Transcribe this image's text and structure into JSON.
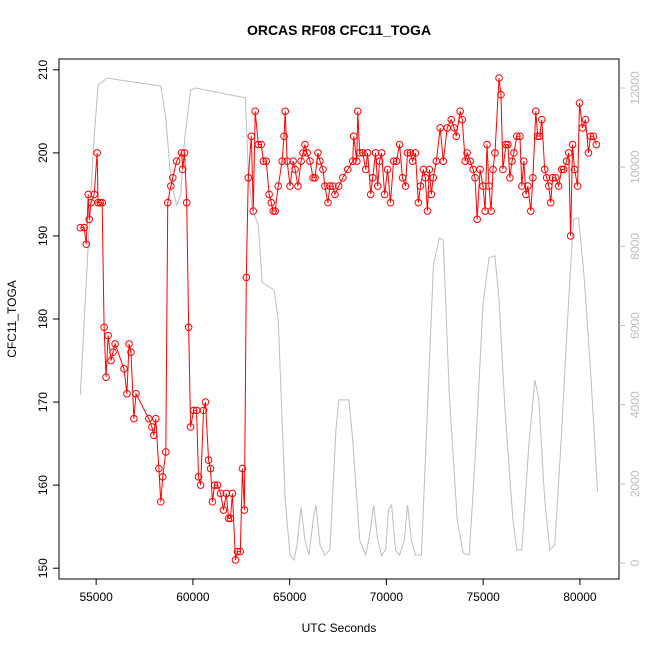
{
  "chart_data": {
    "type": "line",
    "title": "ORCAS RF08 CFC11_TOGA",
    "x_label": "UTC Seconds",
    "y_label": "CFC11_TOGA",
    "xlim": [
      53080,
      82020
    ],
    "xticks": [
      55000,
      60000,
      65000,
      70000,
      75000,
      80000
    ],
    "ylim": [
      148.7,
      211.3
    ],
    "yticks": [
      150,
      160,
      170,
      180,
      190,
      200,
      210
    ],
    "y2lim": [
      -404,
      12733
    ],
    "y2ticks": [
      0,
      2000,
      4000,
      6000,
      8000,
      10000,
      12000
    ],
    "grid": false,
    "series": [
      {
        "color": "#ff0000",
        "marker": "circle",
        "x": [
          54180,
          54380,
          54490,
          54590,
          54640,
          54740,
          54900,
          55050,
          55100,
          55210,
          55310,
          55410,
          55510,
          55620,
          55770,
          55870,
          55980,
          56440,
          56590,
          56700,
          56800,
          56950,
          57060,
          57720,
          57880,
          57980,
          58080,
          58240,
          58340,
          58440,
          58600,
          58700,
          58860,
          58960,
          59160,
          59420,
          59470,
          59570,
          59680,
          59780,
          59880,
          60040,
          60190,
          60290,
          60400,
          60550,
          60650,
          60810,
          60910,
          61010,
          61120,
          61270,
          61430,
          61580,
          61730,
          61840,
          61940,
          62040,
          62200,
          62300,
          62450,
          62560,
          62660,
          62760,
          62860,
          63020,
          63120,
          63220,
          63380,
          63530,
          63640,
          63790,
          63940,
          64050,
          64150,
          64250,
          64410,
          64610,
          64710,
          64770,
          64870,
          65020,
          65180,
          65280,
          65430,
          65590,
          65690,
          65790,
          65900,
          66050,
          66210,
          66310,
          66460,
          66570,
          66720,
          66820,
          66980,
          67080,
          67230,
          67340,
          67540,
          67750,
          68000,
          68260,
          68310,
          68470,
          68520,
          68620,
          68780,
          68930,
          69030,
          69190,
          69290,
          69440,
          69550,
          69650,
          69750,
          69910,
          70060,
          70210,
          70370,
          70520,
          70680,
          70830,
          70990,
          71090,
          71240,
          71350,
          71500,
          71650,
          71760,
          71910,
          72010,
          72120,
          72220,
          72320,
          72420,
          72580,
          72780,
          72940,
          73140,
          73350,
          73500,
          73610,
          73810,
          73920,
          74070,
          74170,
          74330,
          74480,
          74580,
          74690,
          74840,
          74990,
          75100,
          75200,
          75300,
          75410,
          75510,
          75610,
          75820,
          75920,
          76020,
          76180,
          76280,
          76380,
          76490,
          76590,
          76740,
          76900,
          77000,
          77100,
          77210,
          77310,
          77460,
          77570,
          77720,
          77820,
          77920,
          78030,
          78180,
          78280,
          78390,
          78490,
          78590,
          78750,
          78900,
          79060,
          79160,
          79310,
          79420,
          79520,
          79620,
          79720,
          79880,
          79980,
          80130,
          80290,
          80440,
          80550,
          80700,
          80850
        ],
        "values": [
          191,
          191,
          189,
          195,
          192,
          194,
          195,
          200,
          194,
          194,
          194,
          179,
          173,
          178,
          175,
          176,
          177,
          174,
          171,
          177,
          176,
          168,
          171,
          168,
          167,
          166,
          168,
          162,
          158,
          161,
          164,
          194,
          196,
          197,
          199,
          200,
          198,
          200,
          194,
          179,
          167,
          169,
          169,
          161,
          160,
          169,
          170,
          163,
          162,
          158,
          160,
          160,
          159,
          157,
          159,
          156,
          156,
          159,
          151,
          152,
          152,
          162,
          157,
          185,
          197,
          202,
          193,
          205,
          201,
          201,
          199,
          199,
          195,
          194,
          193,
          193,
          196,
          199,
          202,
          205,
          199,
          196,
          199,
          198,
          196,
          199,
          200,
          201,
          200,
          199,
          197,
          197,
          200,
          199,
          198,
          196,
          194,
          196,
          196,
          195,
          196,
          197,
          198,
          199,
          202,
          199,
          205,
          200,
          200,
          198,
          200,
          195,
          197,
          200,
          196,
          199,
          200,
          195,
          198,
          194,
          199,
          199,
          201,
          197,
          196,
          200,
          200,
          199,
          200,
          194,
          196,
          198,
          197,
          193,
          198,
          195,
          197,
          199,
          203,
          199,
          203,
          204,
          203,
          202,
          205,
          204,
          199,
          200,
          199,
          198,
          197,
          192,
          198,
          196,
          193,
          201,
          196,
          193,
          198,
          200,
          209,
          207,
          198,
          201,
          201,
          197,
          199,
          200,
          202,
          202,
          196,
          199,
          195,
          196,
          193,
          197,
          205,
          202,
          202,
          204,
          198,
          197,
          196,
          194,
          197,
          197,
          196,
          198,
          198,
          199,
          200,
          190,
          201,
          198,
          196,
          206,
          203,
          204,
          200,
          202,
          202,
          201
        ]
      },
      {
        "color": "#bebebe",
        "axis": "y2",
        "x": [
          54180,
          54850,
          55100,
          55570,
          58340,
          58600,
          58860,
          59160,
          59370,
          59570,
          59880,
          60140,
          62710,
          62860,
          63070,
          63380,
          63580,
          63790,
          64200,
          64410,
          64770,
          65020,
          65230,
          65380,
          65590,
          65790,
          66000,
          66210,
          66360,
          66570,
          66820,
          67080,
          67390,
          67540,
          68060,
          68260,
          68620,
          68930,
          69140,
          69340,
          69550,
          69750,
          69960,
          70110,
          70270,
          70470,
          70680,
          70930,
          71090,
          71290,
          71500,
          71810,
          72120,
          72430,
          72730,
          72940,
          73250,
          73660,
          73970,
          74280,
          74580,
          74990,
          75300,
          75610,
          75820,
          76130,
          76540,
          76740,
          77000,
          77360,
          77670,
          77870,
          78180,
          78440,
          78700,
          79000,
          79420,
          79670,
          79930,
          80190,
          80550,
          80910
        ],
        "values": [
          4245,
          10435,
          12077,
          12250,
          12050,
          11240,
          9680,
          9045,
          9300,
          10690,
          11950,
          12000,
          11750,
          9930,
          8920,
          8540,
          7100,
          7020,
          6900,
          6140,
          1590,
          200,
          75,
          455,
          1415,
          580,
          200,
          1085,
          1465,
          455,
          200,
          330,
          3360,
          4120,
          4120,
          3110,
          580,
          200,
          710,
          1465,
          580,
          200,
          330,
          1340,
          1465,
          330,
          200,
          580,
          1465,
          580,
          200,
          200,
          3865,
          7530,
          8210,
          8160,
          4245,
          1085,
          250,
          200,
          2600,
          6520,
          7710,
          7760,
          6645,
          3865,
          1085,
          330,
          330,
          2980,
          4620,
          4170,
          1590,
          330,
          455,
          2855,
          6645,
          8690,
          8715,
          7400,
          4875,
          1795
        ]
      }
    ]
  }
}
